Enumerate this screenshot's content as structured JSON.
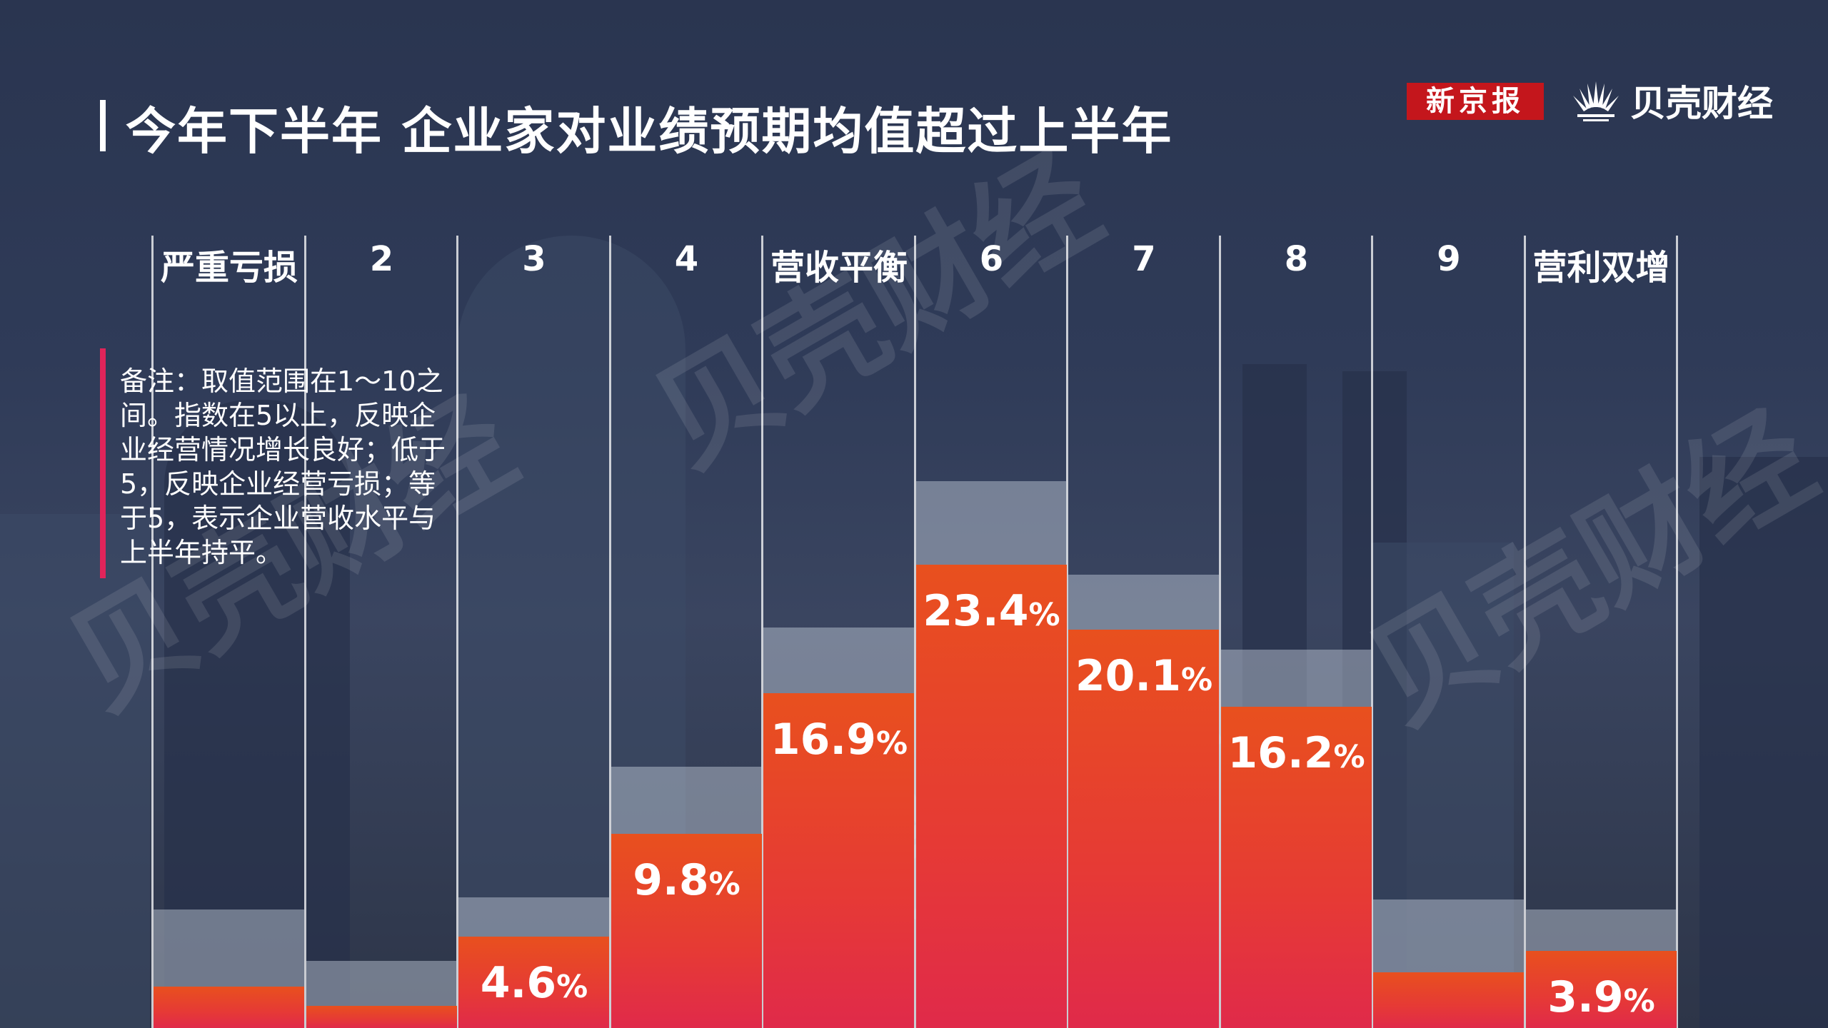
{
  "header": {
    "title": "今年下半年  企业家对业绩预期均值超过上半年",
    "brand_xjb": "新京报",
    "brand_bk": "贝壳财经"
  },
  "note": "备注：取值范围在1～10之间。指数在5以上，反映企业经营情况增长良好；低于5，反映企业经营亏损；等于5，表示企业营收水平与上半年持平。",
  "watermark": "贝壳财经",
  "colors": {
    "bar_top": "#e8501e",
    "bar_bottom": "#e02a4a",
    "brand_red": "#c4161c",
    "note_accent": "#e0245a"
  },
  "chart_data": {
    "type": "bar",
    "title": "今年下半年  企业家对业绩预期均值超过上半年",
    "categories": [
      "严重亏损",
      "2",
      "3",
      "4",
      "营收平衡",
      "6",
      "7",
      "8",
      "9",
      "营利双增"
    ],
    "series": [
      {
        "values": [
          2.1,
          1.1,
          4.6,
          9.8,
          16.9,
          23.4,
          20.1,
          16.2,
          2.8,
          3.9
        ]
      },
      {
        "values": [
          6.0,
          3.4,
          6.6,
          13.2,
          20.2,
          27.6,
          22.9,
          19.1,
          6.5,
          6.0
        ]
      }
    ],
    "data_labels": [
      "",
      "",
      "4.6",
      "9.8",
      "16.9",
      "23.4",
      "20.1",
      "16.2",
      "",
      "3.9"
    ],
    "unit": "%",
    "ylim": [
      0,
      40
    ],
    "grid": false
  }
}
